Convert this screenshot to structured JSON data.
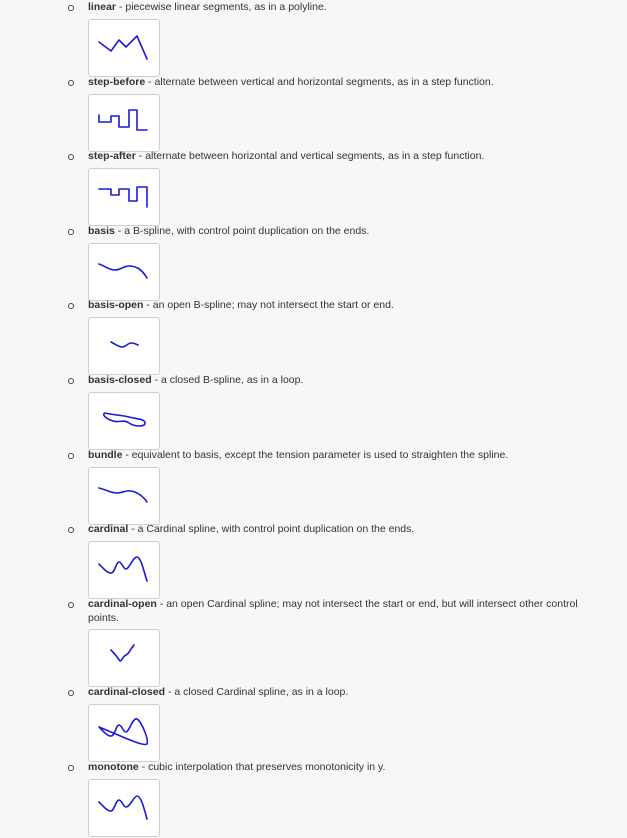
{
  "line_color": "#1a1adb",
  "items": [
    {
      "term": "linear",
      "sep": " - ",
      "desc": "piecewise linear segments, as in a polyline."
    },
    {
      "term": "step-before",
      "sep": " - ",
      "desc": "alternate between vertical and horizontal segments, as in a step function."
    },
    {
      "term": "step-after",
      "sep": " - ",
      "desc": "alternate between horizontal and vertical segments, as in a step function."
    },
    {
      "term": "basis",
      "sep": " - ",
      "desc": "a B-spline, with control point duplication on the ends."
    },
    {
      "term": "basis-open",
      "sep": " - ",
      "desc": "an open B-spline; may not intersect the start or end."
    },
    {
      "term": "basis-closed",
      "sep": " - ",
      "desc": "a closed B-spline, as in a loop."
    },
    {
      "term": "bundle",
      "sep": " - ",
      "desc": "equivalent to basis, except the tension parameter is used to straighten the spline."
    },
    {
      "term": "cardinal",
      "sep": " - ",
      "desc": "a Cardinal spline, with control point duplication on the ends."
    },
    {
      "term": "cardinal-open",
      "sep": " - ",
      "desc": "an open Cardinal spline; may not intersect the start or end, but will intersect other control points."
    },
    {
      "term": "cardinal-closed",
      "sep": " - ",
      "desc": "a closed Cardinal spline, as in a loop."
    },
    {
      "term": "monotone",
      "sep": " - ",
      "desc": "cubic interpolation that preserves monotonicity in y."
    }
  ]
}
